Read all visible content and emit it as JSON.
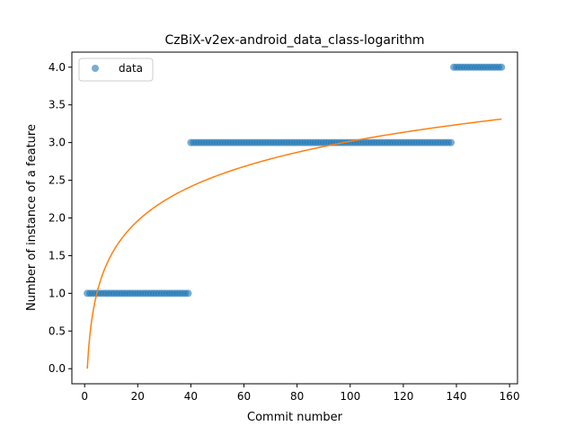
{
  "chart_data": {
    "type": "scatter",
    "title": "CzBiX-v2ex-android_data_class-logarithm",
    "xlabel": "Commit number",
    "ylabel": "Number of instance of a feature",
    "xlim": [
      -4.8,
      163
    ],
    "ylim": [
      -0.2,
      4.2
    ],
    "xticks": [
      0,
      20,
      40,
      60,
      80,
      100,
      120,
      140,
      160
    ],
    "yticks": [
      0.0,
      0.5,
      1.0,
      1.5,
      2.0,
      2.5,
      3.0,
      3.5,
      4.0
    ],
    "xtick_labels": [
      "0",
      "20",
      "40",
      "60",
      "80",
      "100",
      "120",
      "140",
      "160"
    ],
    "ytick_labels": [
      "0.0",
      "0.5",
      "1.0",
      "1.5",
      "2.0",
      "2.5",
      "3.0",
      "3.5",
      "4.0"
    ],
    "grid": false,
    "legend": {
      "position": "upper-left",
      "entries": [
        "data"
      ]
    },
    "series": [
      {
        "name": "data",
        "kind": "scatter",
        "color": "#1f77b4",
        "segments": [
          {
            "x_from": 1,
            "x_to": 39,
            "y": 1
          },
          {
            "x_from": 40,
            "x_to": 138,
            "y": 3
          },
          {
            "x_from": 139,
            "x_to": 157,
            "y": 4
          }
        ]
      },
      {
        "kind": "line",
        "color": "#ff7f0e",
        "model": "logarithmic",
        "a": 0.655,
        "b": 0.0,
        "x_range": [
          1,
          157
        ]
      }
    ]
  }
}
